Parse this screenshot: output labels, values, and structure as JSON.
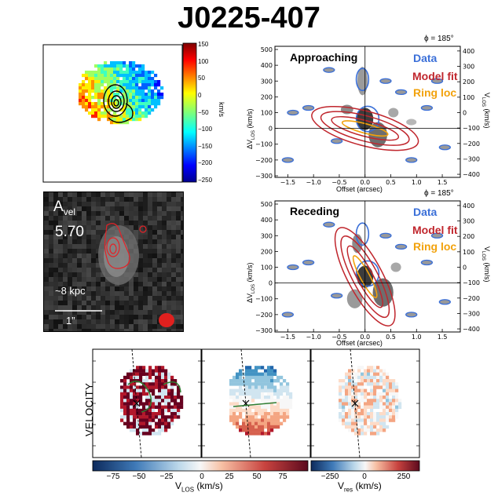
{
  "figure": {
    "title": "J0225-407"
  },
  "velocity_map": {
    "colorbar_label": "km/s",
    "colorbar_ticks": [
      "150",
      "100",
      "50",
      "0",
      "−50",
      "−100",
      "−150",
      "−200",
      "−250"
    ],
    "range": [
      -250,
      150
    ]
  },
  "image_panel": {
    "label_main": "A",
    "label_sub": "vel",
    "value": "5.70",
    "scale_text": "~8 kpc",
    "arcsec_text": "1”"
  },
  "pv_approaching": {
    "phi": "ϕ = 185°",
    "label": "Approaching",
    "legend": [
      "Data",
      "Model fit",
      "Ring loc"
    ],
    "ylabel": "ΔV",
    "ylabel_sub": "LOS",
    "ylabel_unit": " (km/s)",
    "ylabel_right": "V",
    "ylabel_right_sub": "LOS",
    "ylabel_right_unit": " (km/s)",
    "xlabel": "Offset (arcsec)"
  },
  "pv_receding": {
    "phi": "ϕ = 185°",
    "label": "Receding",
    "legend": [
      "Data",
      "Model fit",
      "Ring loc"
    ],
    "ylabel": "ΔV",
    "ylabel_sub": "LOS",
    "ylabel_unit": " (km/s)",
    "ylabel_right": "V",
    "ylabel_right_sub": "LOS",
    "ylabel_right_unit": " (km/s)",
    "xlabel": "Offset (arcsec)"
  },
  "bottom_row": {
    "row_label": "VELOCITY",
    "cbar1_ticks": [
      "−75",
      "−50",
      "−25",
      "0",
      "25",
      "50",
      "75"
    ],
    "cbar1_label": "V",
    "cbar1_label_sub": "LOS",
    "cbar1_label_unit": " (km/s)",
    "cbar2_ticks": [
      "−250",
      "0",
      "250"
    ],
    "cbar2_label": "V",
    "cbar2_label_sub": "res",
    "cbar2_label_unit": " (km/s)"
  },
  "chart_data": [
    {
      "type": "heatmap",
      "title": "Approaching",
      "xlabel": "Offset (arcsec)",
      "ylabel": "ΔV_LOS (km/s)",
      "ylabel_right": "V_LOS (km/s)",
      "xlim": [
        -1.75,
        1.85
      ],
      "ylim": [
        -310,
        520
      ],
      "ylim_right": [
        -420,
        430
      ],
      "x_ticks": [
        -1.5,
        -1.0,
        -0.5,
        0.0,
        0.5,
        1.0,
        1.5
      ],
      "y_ticks": [
        -300,
        -200,
        -100,
        0,
        100,
        200,
        300,
        400,
        500
      ],
      "y_ticks_right": [
        -400,
        -300,
        -200,
        -100,
        0,
        100,
        200,
        300,
        400
      ],
      "x_tick_labels": [
        "−1.5",
        "−1.0",
        "−0.5",
        "0.0",
        "0.5",
        "1.0",
        "1.5"
      ],
      "y_tick_labels": [
        "−300",
        "−200",
        "−100",
        "0",
        "100",
        "200",
        "300",
        "400",
        "500"
      ],
      "y_tick_labels_right": [
        "−400",
        "−300",
        "−200",
        "−100",
        "0",
        "100",
        "200",
        "300",
        "400"
      ],
      "series": [
        {
          "name": "Data",
          "color": "#3a6fd8"
        },
        {
          "name": "Model fit",
          "color": "#c0262d"
        },
        {
          "name": "Ring loc",
          "color": "#f2a20c"
        }
      ],
      "legend_placement": "top-right"
    },
    {
      "type": "heatmap",
      "title": "Receding",
      "xlabel": "Offset (arcsec)",
      "ylabel": "ΔV_LOS (km/s)",
      "ylabel_right": "V_LOS (km/s)",
      "xlim": [
        -1.75,
        1.85
      ],
      "ylim": [
        -310,
        520
      ],
      "ylim_right": [
        -420,
        430
      ],
      "x_ticks": [
        -1.5,
        -1.0,
        -0.5,
        0.0,
        0.5,
        1.0,
        1.5
      ],
      "y_ticks": [
        -300,
        -200,
        -100,
        0,
        100,
        200,
        300,
        400,
        500
      ],
      "y_ticks_right": [
        -400,
        -300,
        -200,
        -100,
        0,
        100,
        200,
        300,
        400
      ],
      "x_tick_labels": [
        "−1.5",
        "−1.0",
        "−0.5",
        "0.0",
        "0.5",
        "1.0",
        "1.5"
      ],
      "y_tick_labels": [
        "−300",
        "−200",
        "−100",
        "0",
        "100",
        "200",
        "300",
        "400",
        "500"
      ],
      "y_tick_labels_right": [
        "−400",
        "−300",
        "−200",
        "−100",
        "0",
        "100",
        "200",
        "300",
        "400"
      ],
      "series": [
        {
          "name": "Data",
          "color": "#3a6fd8"
        },
        {
          "name": "Model fit",
          "color": "#c0262d"
        },
        {
          "name": "Ring loc",
          "color": "#f2a20c"
        }
      ],
      "legend_placement": "top-right"
    }
  ]
}
